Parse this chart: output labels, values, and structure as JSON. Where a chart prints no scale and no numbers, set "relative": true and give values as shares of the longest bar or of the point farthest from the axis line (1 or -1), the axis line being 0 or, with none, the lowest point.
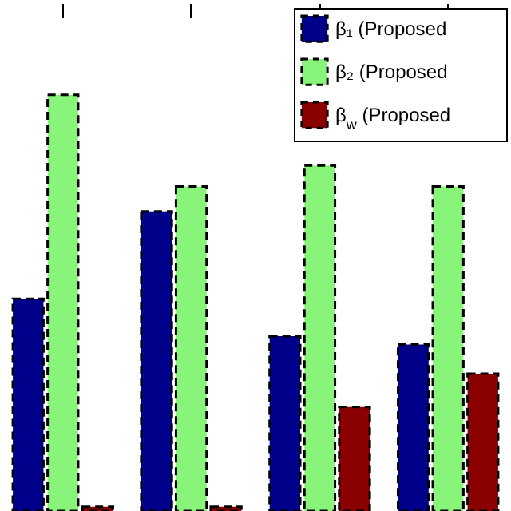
{
  "chart_data": {
    "type": "bar",
    "relative": true,
    "categories": [
      null,
      null,
      null,
      null
    ],
    "series": [
      {
        "name": "β₁ (Proposed",
        "color": "#00008b",
        "values": [
          0.51,
          0.72,
          0.42,
          0.4
        ]
      },
      {
        "name": "β₂ (Proposed",
        "color": "#88f57a",
        "values": [
          1,
          0.78,
          0.83,
          0.78
        ]
      },
      {
        "name": "β$_{w}$ (Proposed",
        "color": "#8b0000",
        "values": [
          0.01,
          0.01,
          0.25,
          0.33
        ]
      }
    ],
    "legend": "top right",
    "tick_labels": false,
    "grid": false
  }
}
